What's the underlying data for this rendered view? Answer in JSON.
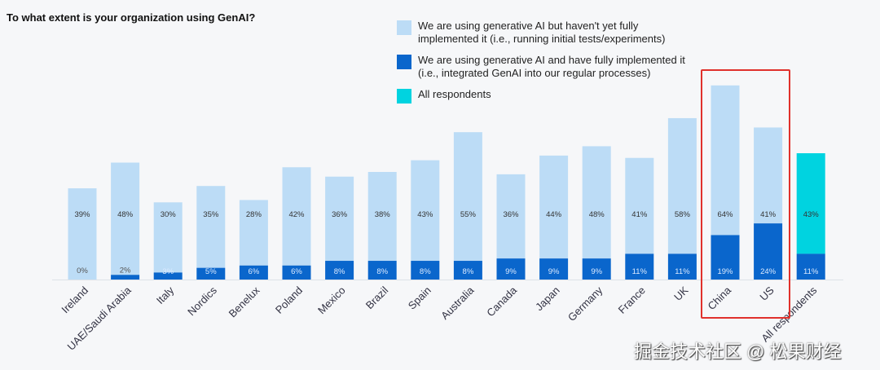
{
  "chart_data": {
    "type": "bar",
    "stacked": true,
    "title": "To what extent is your organization using GenAI?",
    "categories": [
      "Ireland",
      "UAE/Saudi Arabia",
      "Italy",
      "Nordics",
      "Benelux",
      "Poland",
      "Mexico",
      "Brazil",
      "Spain",
      "Australia",
      "Canada",
      "Japan",
      "Germany",
      "France",
      "UK",
      "China",
      "US",
      "All respondents"
    ],
    "series": [
      {
        "name": "We are using generative AI and have fully implemented it (i.e., integrated GenAI into our regular processes)",
        "color": "#0a66cc",
        "values": [
          0,
          2,
          3,
          5,
          6,
          6,
          8,
          8,
          8,
          8,
          9,
          9,
          9,
          11,
          11,
          19,
          24,
          11
        ],
        "labels": [
          "0%",
          "2%",
          "3%",
          "5%",
          "6%",
          "6%",
          "8%",
          "8%",
          "8%",
          "8%",
          "9%",
          "9%",
          "9%",
          "11%",
          "11%",
          "19%",
          "24%",
          "11%"
        ]
      },
      {
        "name": "We are using generative AI but haven't yet fully implemented it (i.e., running initial tests/experiments)",
        "color": "#bcdcf6",
        "values": [
          39,
          48,
          30,
          35,
          28,
          42,
          36,
          38,
          43,
          55,
          36,
          44,
          48,
          41,
          58,
          64,
          41,
          43
        ],
        "labels": [
          "39%",
          "48%",
          "30%",
          "35%",
          "28%",
          "42%",
          "36%",
          "38%",
          "43%",
          "55%",
          "36%",
          "44%",
          "48%",
          "41%",
          "58%",
          "64%",
          "41%",
          "43%"
        ]
      }
    ],
    "all_respondents_color": "#00d3e0",
    "all_respondents_legend": "All respondents",
    "highlighted": [
      "China",
      "US"
    ],
    "ylim": [
      0,
      85
    ],
    "legend": "top-right"
  },
  "watermark": "掘金技术社区 @ 松果财经"
}
